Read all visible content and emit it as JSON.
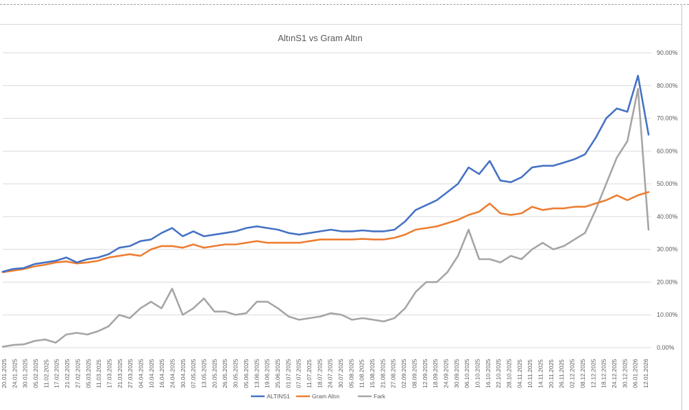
{
  "chart_data": {
    "type": "line",
    "title": "AltınS1 vs Gram Altın",
    "xlabel": "",
    "ylabel": "",
    "ylim": [
      0,
      90
    ],
    "y_ticks": [
      "0.00%",
      "10.00%",
      "20.00%",
      "30.00%",
      "40.00%",
      "50.00%",
      "60.00%",
      "70.00%",
      "80.00%",
      "90.00%"
    ],
    "x_ticks": [
      "20.01.2025",
      "24.01.2025",
      "30.01.2025",
      "05.02.2025",
      "11.02.2025",
      "17.02.2025",
      "21.02.2025",
      "27.02.2025",
      "05.03.2025",
      "11.03.2025",
      "17.03.2025",
      "21.03.2025",
      "27.03.2025",
      "04.04.2025",
      "10.04.2025",
      "16.04.2025",
      "24.04.2025",
      "30.04.2025",
      "07.05.2025",
      "13.05.2025",
      "20.05.2025",
      "26.05.2025",
      "30.05.2025",
      "05.06.2025",
      "13.06.2025",
      "19.06.2025",
      "25.06.2025",
      "01.07.2025",
      "07.07.2025",
      "11.07.2025",
      "18.07.2025",
      "24.07.2025",
      "30.07.2025",
      "05.08.2025",
      "11.08.2025",
      "15.08.2025",
      "21.08.2025",
      "27.08.2025",
      "02.09.2025",
      "08.09.2025",
      "12.09.2025",
      "18.09.2025",
      "24.09.2025",
      "30.09.2025",
      "06.10.2025",
      "10.10.2025",
      "16.10.2025",
      "22.10.2025",
      "28.10.2025",
      "04.11.2025",
      "10.11.2025",
      "14.11.2025",
      "20.11.2025",
      "26.11.2025",
      "02.12.2025",
      "08.12.2025",
      "12.12.2025",
      "18.12.2025",
      "24.12.2025",
      "30.12.2025",
      "06.01.2026",
      "12.01.2026"
    ],
    "grid": true,
    "legend_position": "bottom",
    "series": [
      {
        "name": "ALTINS1",
        "color": "#4472C4",
        "values": [
          23.2,
          24.0,
          24.3,
          25.5,
          26.0,
          26.5,
          27.5,
          26.0,
          27.0,
          27.5,
          28.5,
          30.5,
          31.0,
          32.5,
          33.0,
          35.0,
          36.5,
          34.0,
          35.5,
          34.0,
          34.5,
          35.0,
          35.5,
          36.5,
          37.0,
          36.5,
          36.0,
          35.0,
          34.5,
          35.0,
          35.5,
          36.0,
          35.5,
          35.5,
          35.8,
          35.5,
          35.5,
          36.0,
          38.5,
          42.0,
          43.5,
          45.0,
          47.5,
          50.0,
          55.0,
          53.0,
          57.0,
          51.0,
          50.5,
          52.0,
          55.0,
          55.5,
          55.5,
          56.5,
          57.5,
          59.0,
          64.0,
          70.0,
          73.0,
          72.0,
          83.0,
          65.0
        ]
      },
      {
        "name": "Gram Altın",
        "color": "#ED7D31",
        "values": [
          23.0,
          23.5,
          24.0,
          24.8,
          25.3,
          26.0,
          26.3,
          25.7,
          26.0,
          26.5,
          27.5,
          28.0,
          28.5,
          28.0,
          30.0,
          31.0,
          31.0,
          30.5,
          31.5,
          30.5,
          31.0,
          31.5,
          31.5,
          32.0,
          32.5,
          32.0,
          32.0,
          32.0,
          32.0,
          32.5,
          33.0,
          33.0,
          33.0,
          33.0,
          33.2,
          33.0,
          33.0,
          33.5,
          34.5,
          36.0,
          36.5,
          37.0,
          38.0,
          39.0,
          40.5,
          41.5,
          44.0,
          41.0,
          40.5,
          41.0,
          43.0,
          42.0,
          42.5,
          42.5,
          43.0,
          43.0,
          44.0,
          45.0,
          46.5,
          45.0,
          46.5,
          47.5
        ]
      },
      {
        "name": "Fark",
        "color": "#A5A5A5",
        "values": [
          0.3,
          0.8,
          1.0,
          2.0,
          2.5,
          1.5,
          4.0,
          4.5,
          4.0,
          5.0,
          6.5,
          10.0,
          9.0,
          12.0,
          14.0,
          12.0,
          18.0,
          10.0,
          12.0,
          15.0,
          11.0,
          11.0,
          10.0,
          10.5,
          14.0,
          14.0,
          12.0,
          9.5,
          8.5,
          9.0,
          9.5,
          10.5,
          10.0,
          8.5,
          9.0,
          8.5,
          8.0,
          9.0,
          12.0,
          17.0,
          20.0,
          20.0,
          23.0,
          28.0,
          36.0,
          27.0,
          27.0,
          26.0,
          28.0,
          27.0,
          30.0,
          32.0,
          30.0,
          31.0,
          33.0,
          35.0,
          42.0,
          50.0,
          58.0,
          63.0,
          79.0,
          36.0
        ]
      }
    ]
  }
}
